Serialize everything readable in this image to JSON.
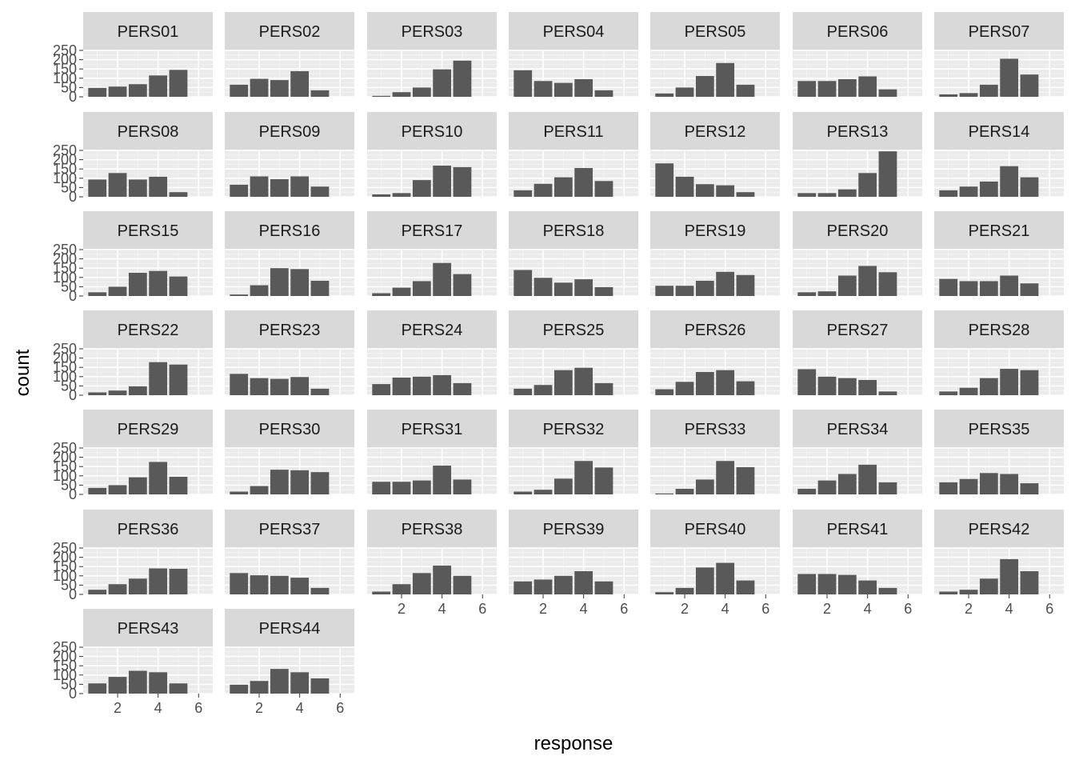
{
  "chart_data": {
    "type": "bar",
    "layout": "facet_wrap",
    "xlabel": "response",
    "ylabel": "count",
    "xlim": [
      0.3,
      6.7
    ],
    "ylim": [
      0,
      250
    ],
    "x_ticks": [
      2,
      4,
      6
    ],
    "y_ticks": [
      0,
      50,
      100,
      150,
      200,
      250
    ],
    "categories": [
      1,
      2,
      3,
      4,
      5
    ],
    "facets": [
      {
        "name": "PERS01",
        "values": [
          48,
          55,
          68,
          115,
          145
        ]
      },
      {
        "name": "PERS02",
        "values": [
          65,
          97,
          90,
          138,
          35
        ]
      },
      {
        "name": "PERS03",
        "values": [
          5,
          25,
          50,
          148,
          195
        ]
      },
      {
        "name": "PERS04",
        "values": [
          143,
          85,
          75,
          95,
          35
        ]
      },
      {
        "name": "PERS05",
        "values": [
          18,
          50,
          112,
          182,
          65
        ]
      },
      {
        "name": "PERS06",
        "values": [
          85,
          85,
          95,
          110,
          40
        ]
      },
      {
        "name": "PERS07",
        "values": [
          13,
          20,
          65,
          205,
          120
        ]
      },
      {
        "name": "PERS08",
        "values": [
          93,
          128,
          93,
          108,
          25
        ]
      },
      {
        "name": "PERS09",
        "values": [
          65,
          110,
          95,
          110,
          55
        ]
      },
      {
        "name": "PERS10",
        "values": [
          13,
          20,
          90,
          168,
          160
        ]
      },
      {
        "name": "PERS11",
        "values": [
          35,
          70,
          105,
          155,
          85
        ]
      },
      {
        "name": "PERS12",
        "values": [
          180,
          108,
          68,
          62,
          25
        ]
      },
      {
        "name": "PERS13",
        "values": [
          20,
          20,
          40,
          128,
          245
        ]
      },
      {
        "name": "PERS14",
        "values": [
          35,
          55,
          82,
          165,
          105
        ]
      },
      {
        "name": "PERS15",
        "values": [
          20,
          50,
          125,
          135,
          105
        ]
      },
      {
        "name": "PERS16",
        "values": [
          8,
          58,
          150,
          145,
          82
        ]
      },
      {
        "name": "PERS17",
        "values": [
          15,
          45,
          80,
          178,
          118
        ]
      },
      {
        "name": "PERS18",
        "values": [
          140,
          98,
          72,
          90,
          48
        ]
      },
      {
        "name": "PERS19",
        "values": [
          55,
          55,
          82,
          130,
          113
        ]
      },
      {
        "name": "PERS20",
        "values": [
          20,
          25,
          110,
          162,
          128
        ]
      },
      {
        "name": "PERS21",
        "values": [
          92,
          80,
          80,
          110,
          68
        ]
      },
      {
        "name": "PERS22",
        "values": [
          15,
          25,
          48,
          178,
          165
        ]
      },
      {
        "name": "PERS23",
        "values": [
          115,
          92,
          88,
          98,
          35
        ]
      },
      {
        "name": "PERS24",
        "values": [
          60,
          95,
          100,
          108,
          65
        ]
      },
      {
        "name": "PERS25",
        "values": [
          35,
          55,
          135,
          148,
          65
        ]
      },
      {
        "name": "PERS26",
        "values": [
          32,
          72,
          125,
          135,
          75
        ]
      },
      {
        "name": "PERS27",
        "values": [
          140,
          100,
          92,
          82,
          20
        ]
      },
      {
        "name": "PERS28",
        "values": [
          20,
          40,
          92,
          142,
          135
        ]
      },
      {
        "name": "PERS29",
        "values": [
          35,
          50,
          92,
          175,
          95
        ]
      },
      {
        "name": "PERS30",
        "values": [
          15,
          45,
          133,
          130,
          120
        ]
      },
      {
        "name": "PERS31",
        "values": [
          68,
          68,
          75,
          155,
          80
        ]
      },
      {
        "name": "PERS32",
        "values": [
          15,
          25,
          85,
          180,
          145
        ]
      },
      {
        "name": "PERS33",
        "values": [
          5,
          30,
          80,
          180,
          147
        ]
      },
      {
        "name": "PERS34",
        "values": [
          30,
          75,
          110,
          160,
          65
        ]
      },
      {
        "name": "PERS35",
        "values": [
          65,
          83,
          115,
          110,
          60
        ]
      },
      {
        "name": "PERS36",
        "values": [
          25,
          55,
          85,
          140,
          138
        ]
      },
      {
        "name": "PERS37",
        "values": [
          115,
          103,
          100,
          90,
          35
        ]
      },
      {
        "name": "PERS38",
        "values": [
          15,
          55,
          115,
          155,
          100
        ]
      },
      {
        "name": "PERS39",
        "values": [
          70,
          80,
          100,
          125,
          70
        ]
      },
      {
        "name": "PERS40",
        "values": [
          12,
          35,
          145,
          170,
          75
        ]
      },
      {
        "name": "PERS41",
        "values": [
          110,
          110,
          105,
          75,
          35
        ]
      },
      {
        "name": "PERS42",
        "values": [
          15,
          25,
          85,
          190,
          125
        ]
      },
      {
        "name": "PERS43",
        "values": [
          55,
          90,
          123,
          115,
          55
        ]
      },
      {
        "name": "PERS44",
        "values": [
          48,
          68,
          133,
          115,
          82
        ]
      }
    ]
  }
}
